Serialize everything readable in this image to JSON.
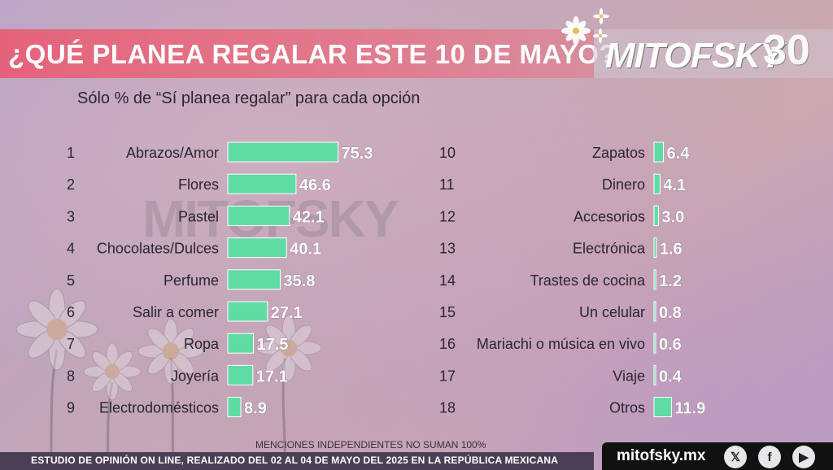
{
  "header": {
    "title": "¿QUÉ PLANEA REGALAR ESTE 10 DE MAYO?",
    "brand": "MITOFSKY",
    "brand_30": "30"
  },
  "watermark": "MITOFSKY",
  "icons": [
    "daisy-icon",
    "x-icon",
    "facebook-icon",
    "youtube-icon"
  ],
  "colors": {
    "bar": "#5fdba4",
    "title_band": "#e5637a",
    "footer": "#4a3f55"
  },
  "footer": {
    "note": "MENCIONES INDEPENDIENTES NO SUMAN 100%",
    "study": "ESTUDIO DE OPINIÓN ON LINE, REALIZADO DEL 02 AL 04 DE MAYO DEL 2025 EN LA REPÚBLICA MEXICANA",
    "site": "mitofsky.mx",
    "social": {
      "x": "𝕏",
      "facebook": "f",
      "youtube": "▶"
    }
  },
  "chart_data": {
    "type": "bar",
    "orientation": "horizontal",
    "title": "",
    "subtitle": "Sólo % de “Sí planea regalar” para cada opción",
    "xlabel": "",
    "ylabel": "",
    "grid": false,
    "ranks": [
      "1",
      "2",
      "3",
      "4",
      "5",
      "6",
      "7",
      "8",
      "9",
      "10",
      "11",
      "12",
      "13",
      "14",
      "15",
      "16",
      "17",
      "18"
    ],
    "categories": [
      "Abrazos/Amor",
      "Flores",
      "Pastel",
      "Chocolates/Dulces",
      "Perfume",
      "Salir a comer",
      "Ropa",
      "Joyería",
      "Electrodomésticos",
      "Zapatos",
      "Dinero",
      "Accesorios",
      "Electrónica",
      "Trastes de cocina",
      "Un celular",
      "Mariachi o música en vivo",
      "Viaje",
      "Otros"
    ],
    "values": [
      75.3,
      46.6,
      42.1,
      40.1,
      35.8,
      27.1,
      17.5,
      17.1,
      8.9,
      6.4,
      4.1,
      3.0,
      1.6,
      1.2,
      0.8,
      0.6,
      0.4,
      11.9
    ],
    "value_labels": [
      "75.3",
      "46.6",
      "42.1",
      "40.1",
      "35.8",
      "27.1",
      "17.5",
      "17.1",
      "8.9",
      "6.4",
      "4.1",
      "3.0",
      "1.6",
      "1.2",
      "0.8",
      "0.6",
      "0.4",
      "11.9"
    ]
  }
}
